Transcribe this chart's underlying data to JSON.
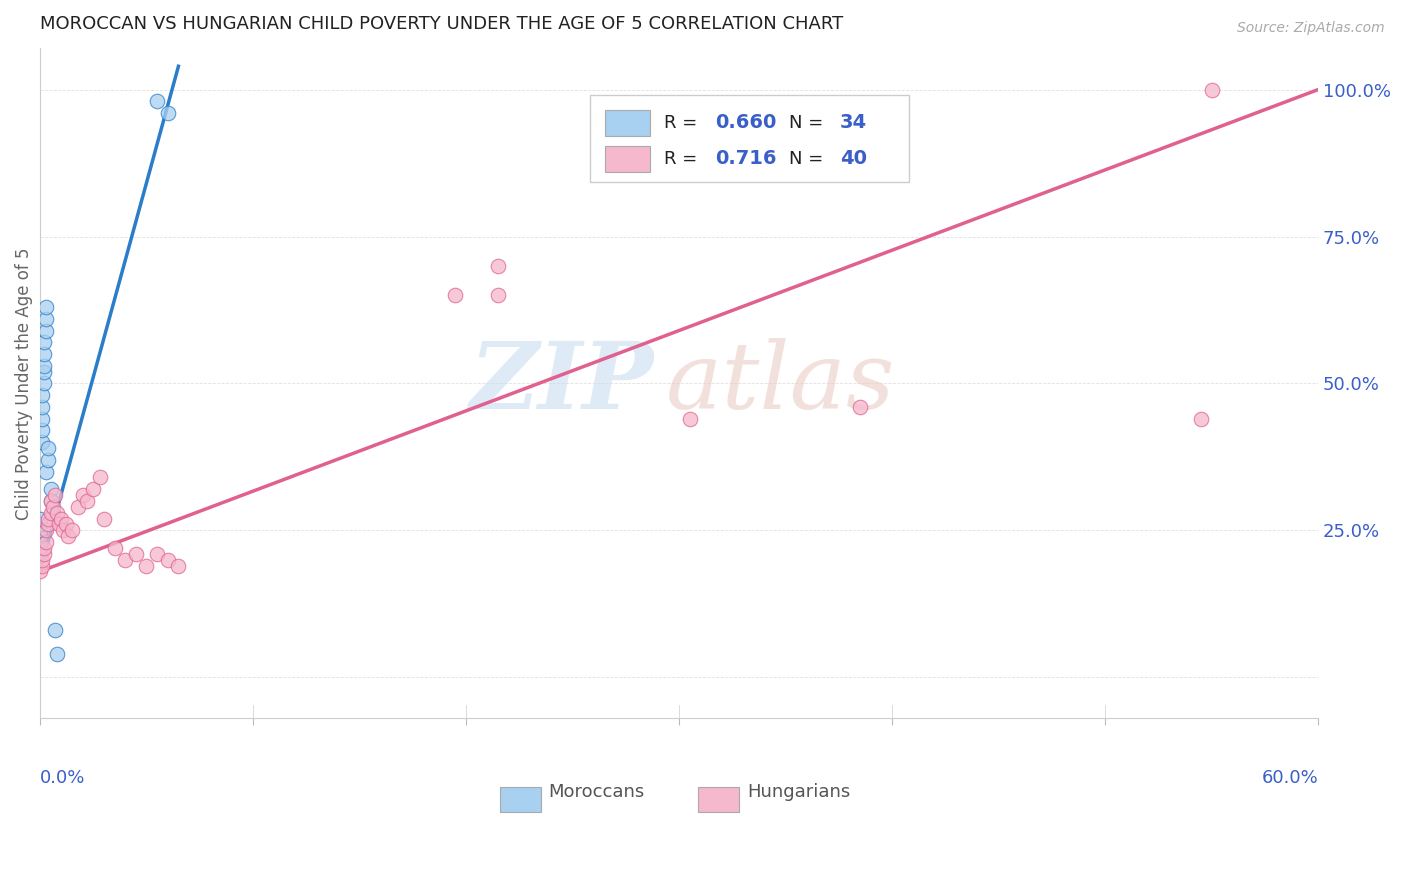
{
  "title": "MOROCCAN VS HUNGARIAN CHILD POVERTY UNDER THE AGE OF 5 CORRELATION CHART",
  "source": "Source: ZipAtlas.com",
  "ylabel": "Child Poverty Under the Age of 5",
  "moroccan_color": "#a8d0f0",
  "hungarian_color": "#f5b8cc",
  "moroccan_line_color": "#2a7dc9",
  "hungarian_line_color": "#e06090",
  "watermark_zip_color": "#c8ddf0",
  "watermark_atlas_color": "#e8c8c0",
  "blue_label_color": "#3a5fc8",
  "axis_label_color": "#666666",
  "grid_color": "#e0e0e0",
  "title_color": "#222222",
  "legend_text_color": "#222222",
  "moroccan_x": [
    0.0,
    0.0,
    0.0,
    0.0,
    0.0,
    0.0,
    0.0,
    0.0,
    0.0,
    0.0,
    0.0,
    0.001,
    0.001,
    0.001,
    0.001,
    0.001,
    0.002,
    0.002,
    0.002,
    0.002,
    0.002,
    0.003,
    0.003,
    0.003,
    0.003,
    0.004,
    0.004,
    0.005,
    0.005,
    0.006,
    0.007,
    0.008,
    0.055,
    0.06
  ],
  "moroccan_y": [
    0.21,
    0.22,
    0.22,
    0.23,
    0.23,
    0.24,
    0.24,
    0.25,
    0.25,
    0.26,
    0.27,
    0.4,
    0.42,
    0.44,
    0.46,
    0.48,
    0.5,
    0.52,
    0.53,
    0.55,
    0.57,
    0.59,
    0.61,
    0.63,
    0.35,
    0.37,
    0.39,
    0.3,
    0.32,
    0.28,
    0.08,
    0.04,
    0.98,
    0.96
  ],
  "hungarian_x": [
    0.0,
    0.001,
    0.001,
    0.002,
    0.002,
    0.003,
    0.003,
    0.004,
    0.004,
    0.005,
    0.005,
    0.006,
    0.007,
    0.008,
    0.009,
    0.01,
    0.011,
    0.012,
    0.013,
    0.015,
    0.018,
    0.02,
    0.022,
    0.025,
    0.028,
    0.03,
    0.035,
    0.04,
    0.045,
    0.05,
    0.055,
    0.06,
    0.065,
    0.195,
    0.215,
    0.215,
    0.305,
    0.385,
    0.545,
    0.55
  ],
  "hungarian_y": [
    0.18,
    0.19,
    0.2,
    0.21,
    0.22,
    0.23,
    0.25,
    0.26,
    0.27,
    0.28,
    0.3,
    0.29,
    0.31,
    0.28,
    0.26,
    0.27,
    0.25,
    0.26,
    0.24,
    0.25,
    0.29,
    0.31,
    0.3,
    0.32,
    0.34,
    0.27,
    0.22,
    0.2,
    0.21,
    0.19,
    0.21,
    0.2,
    0.19,
    0.65,
    0.65,
    0.7,
    0.44,
    0.46,
    0.44,
    1.0
  ],
  "xlim": [
    0.0,
    0.6
  ],
  "ylim": [
    -0.07,
    1.07
  ],
  "yticks": [
    0.0,
    0.25,
    0.5,
    0.75,
    1.0
  ],
  "yticklabels_right": [
    "",
    "25.0%",
    "50.0%",
    "75.0%",
    "100.0%"
  ],
  "xticks": [
    0.0,
    0.1,
    0.2,
    0.3,
    0.4,
    0.5,
    0.6
  ],
  "mor_line_xmax": 0.065,
  "hun_line_xmax": 0.6
}
